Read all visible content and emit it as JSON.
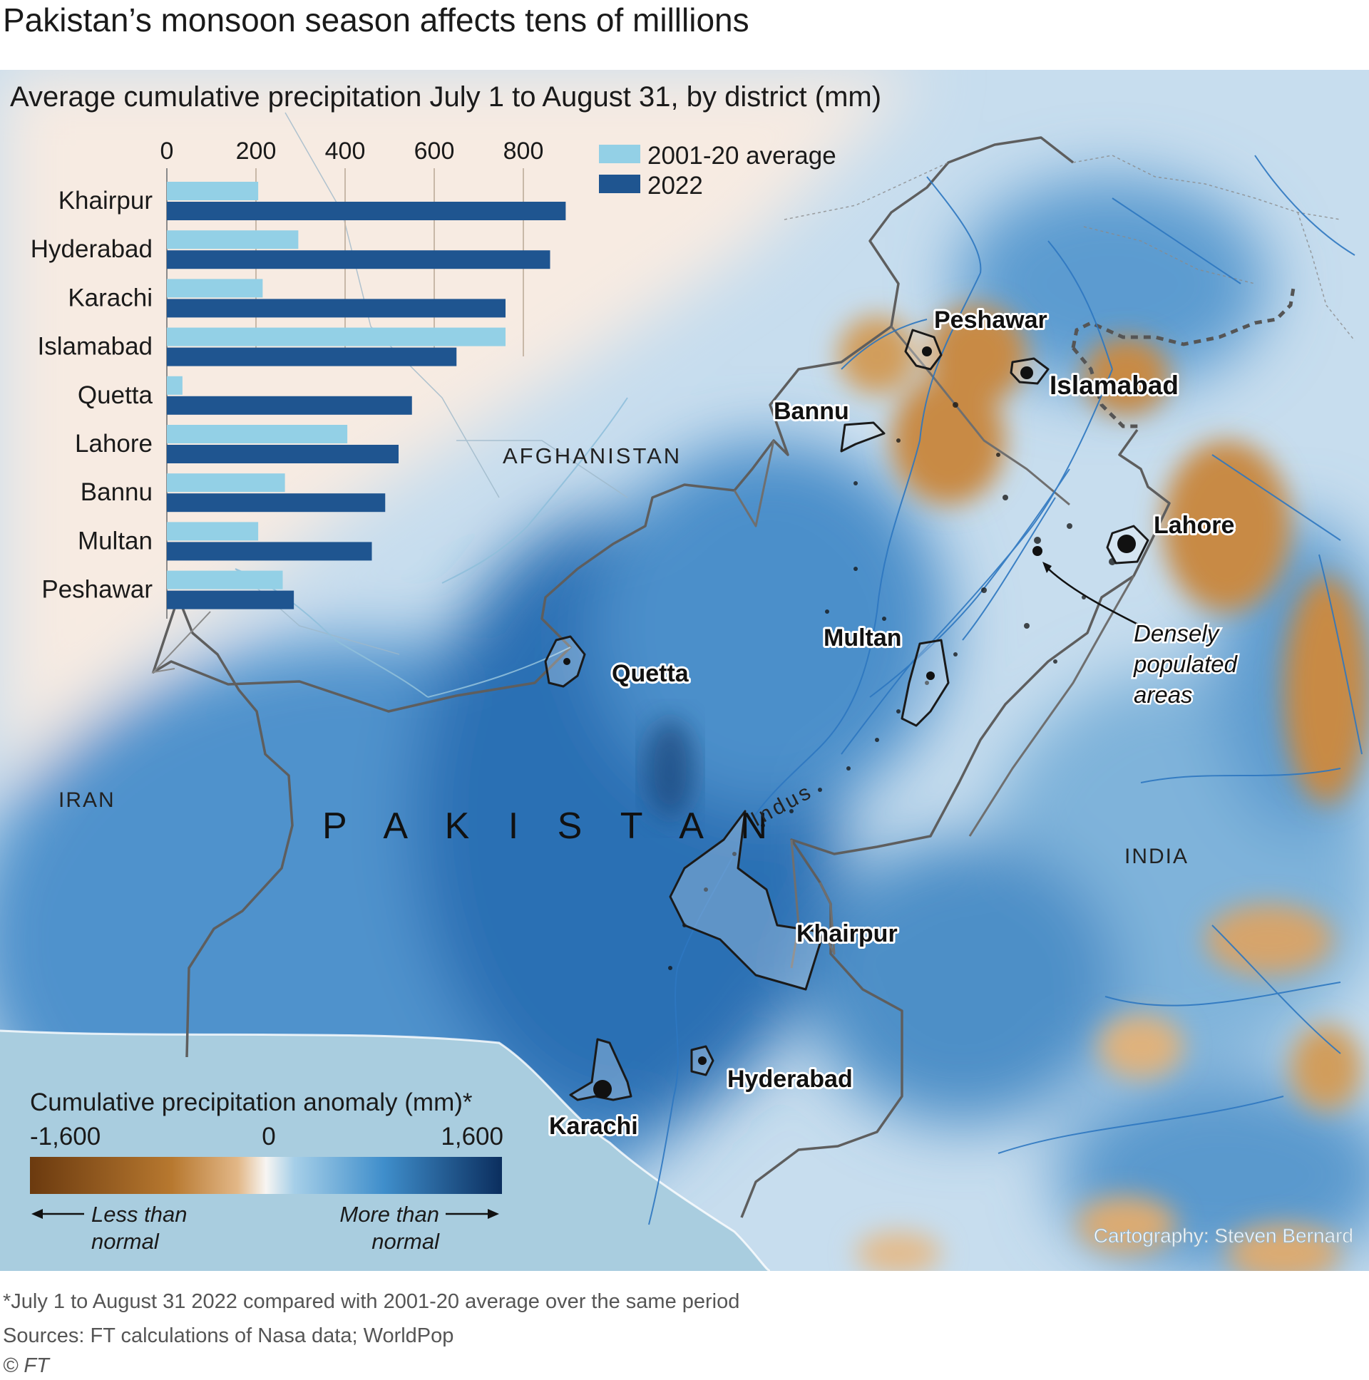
{
  "title": "Pakistan’s monsoon season affects tens of milllions",
  "chart_title": "Average cumulative precipitation July 1 to August 31, by district (mm)",
  "chart_data": {
    "type": "bar",
    "orientation": "horizontal",
    "categories": [
      "Khairpur",
      "Hyderabad",
      "Karachi",
      "Islamabad",
      "Quetta",
      "Lahore",
      "Bannu",
      "Multan",
      "Peshawar"
    ],
    "series": [
      {
        "name": "2001-20 average",
        "color": "#93d0e6",
        "values": [
          205,
          295,
          215,
          760,
          35,
          405,
          265,
          205,
          260
        ]
      },
      {
        "name": "2022",
        "color": "#1f5590",
        "values": [
          895,
          860,
          760,
          650,
          550,
          520,
          490,
          460,
          285
        ]
      }
    ],
    "xticks": [
      "0",
      "200",
      "400",
      "600",
      "800"
    ],
    "xlim": [
      0,
      900
    ],
    "grid": true,
    "legend_position": "top-right"
  },
  "map": {
    "country_label": "P A K I S T A N",
    "neighbour_labels": {
      "afghanistan": "AFGHANISTAN",
      "iran": "IRAN",
      "india": "INDIA"
    },
    "river_label": "Indus",
    "cities": [
      "Peshawar",
      "Islamabad",
      "Bannu",
      "Lahore",
      "Multan",
      "Quetta",
      "Khairpur",
      "Hyderabad",
      "Karachi"
    ],
    "annotation": [
      "Densely",
      "populated",
      "areas"
    ],
    "credit": "Cartography: Steven Bernard",
    "colors": {
      "drier": "#c47d2a",
      "wetter": "#1f5a9c",
      "sea": "#a9cddf",
      "land_neutral": "#faeee4"
    }
  },
  "legend": {
    "title": "Cumulative precipitation anomaly (mm)*",
    "min_label": "-1,600",
    "mid_label": "0",
    "max_label": "1,600",
    "less_line1": "Less than",
    "less_line2": "normal",
    "more_line1": "More than",
    "more_line2": "normal"
  },
  "footnote": "*July 1 to August 31 2022 compared with 2001-20 average over the same period",
  "sources": "Sources: FT calculations of Nasa data; WorldPop",
  "copyright": "© FT"
}
